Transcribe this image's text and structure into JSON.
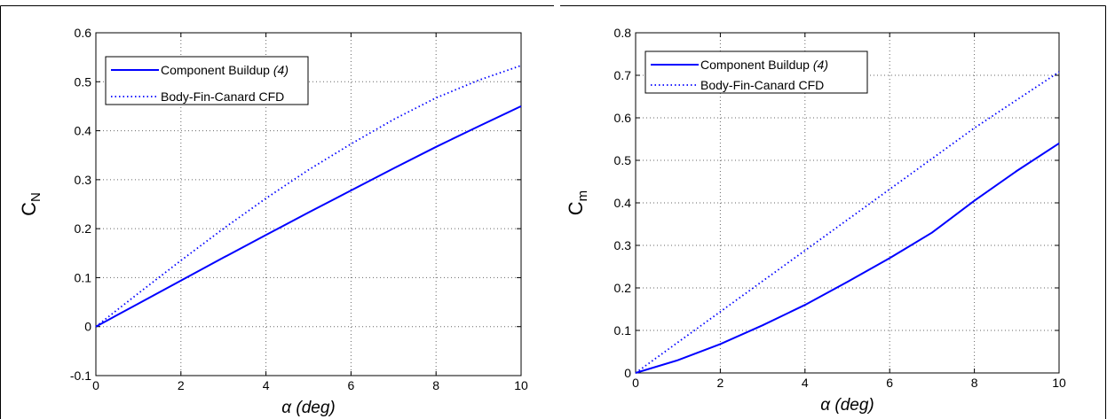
{
  "colors": {
    "series": "#0000ff",
    "axis": "#000000",
    "grid": "#666666",
    "background": "#ffffff"
  },
  "chart_data": [
    {
      "type": "line",
      "xlabel": {
        "symbol": "α",
        "text": "(deg)"
      },
      "ylabel": {
        "main": "C",
        "sub": "N"
      },
      "xlim": [
        0,
        10
      ],
      "ylim": [
        -0.1,
        0.6
      ],
      "xticks": [
        0,
        2,
        4,
        6,
        8,
        10
      ],
      "xtick_labels": [
        "0",
        "2",
        "4",
        "6",
        "8",
        "10"
      ],
      "yticks": [
        -0.1,
        0,
        0.1,
        0.2,
        0.3,
        0.4,
        0.5,
        0.6
      ],
      "ytick_labels": [
        "-0.1",
        "0",
        "0.1",
        "0.2",
        "0.3",
        "0.4",
        "0.5",
        "0.6"
      ],
      "grid": true,
      "legend_position": "top-left",
      "series": [
        {
          "name": "Component Buildup",
          "name_ref": "(4)",
          "style": "solid",
          "x": [
            0,
            1,
            2,
            3,
            4,
            5,
            6,
            7,
            8,
            9,
            10
          ],
          "y": [
            0,
            0.047,
            0.094,
            0.141,
            0.187,
            0.233,
            0.278,
            0.323,
            0.367,
            0.409,
            0.45
          ]
        },
        {
          "name": "Body-Fin-Canard CFD",
          "style": "dotted",
          "x": [
            0,
            1,
            2,
            3,
            4,
            5,
            6,
            7,
            8,
            9,
            10
          ],
          "y": [
            0,
            0.068,
            0.135,
            0.2,
            0.262,
            0.32,
            0.373,
            0.423,
            0.467,
            0.503,
            0.533
          ]
        }
      ]
    },
    {
      "type": "line",
      "xlabel": {
        "symbol": "α",
        "text": "(deg)"
      },
      "ylabel": {
        "main": "C",
        "sub": "m"
      },
      "xlim": [
        0,
        10
      ],
      "ylim": [
        0,
        0.8
      ],
      "xticks": [
        0,
        2,
        4,
        6,
        8,
        10
      ],
      "xtick_labels": [
        "0",
        "2",
        "4",
        "6",
        "8",
        "10"
      ],
      "yticks": [
        0,
        0.1,
        0.2,
        0.3,
        0.4,
        0.5,
        0.6,
        0.7,
        0.8
      ],
      "ytick_labels": [
        "0",
        "0.1",
        "0.2",
        "0.3",
        "0.4",
        "0.5",
        "0.6",
        "0.7",
        "0.8"
      ],
      "grid": true,
      "legend_position": "top-left",
      "series": [
        {
          "name": "Component Buildup",
          "name_ref": "(4)",
          "style": "solid",
          "x": [
            0,
            1,
            2,
            3,
            4,
            5,
            6,
            7,
            8,
            9,
            10
          ],
          "y": [
            0,
            0.03,
            0.068,
            0.112,
            0.16,
            0.214,
            0.27,
            0.33,
            0.405,
            0.475,
            0.54
          ]
        },
        {
          "name": "Body-Fin-Canard CFD",
          "style": "dotted",
          "x": [
            0,
            1,
            2,
            3,
            4,
            5,
            6,
            7,
            8,
            9,
            10
          ],
          "y": [
            0,
            0.072,
            0.144,
            0.216,
            0.288,
            0.36,
            0.432,
            0.504,
            0.576,
            0.642,
            0.708
          ]
        }
      ]
    }
  ]
}
